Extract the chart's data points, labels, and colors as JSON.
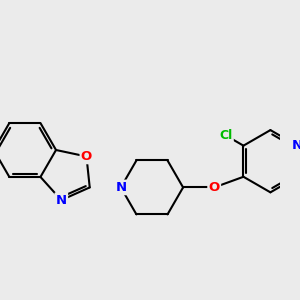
{
  "bg_color": "#ebebeb",
  "bond_color": "#000000",
  "bond_width": 1.5,
  "atom_colors": {
    "N": "#0000ff",
    "O": "#ff0000",
    "Cl": "#00bb00"
  },
  "font_size_atom": 9.5,
  "font_size_cl": 9
}
